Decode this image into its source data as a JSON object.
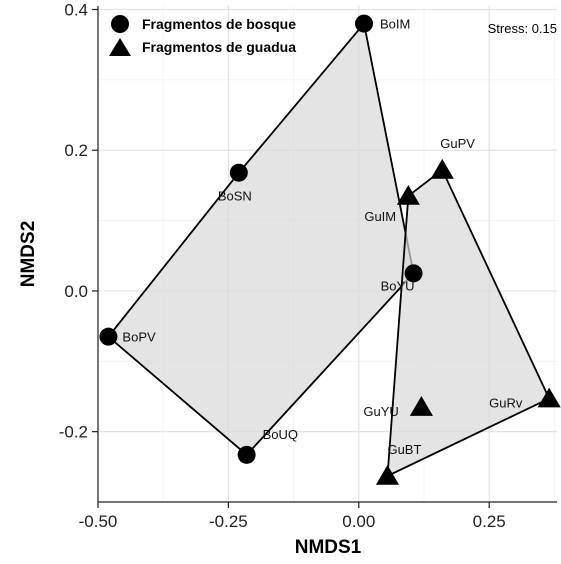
{
  "chart_data": {
    "type": "scatter",
    "xlabel": "NMDS1",
    "ylabel": "NMDS2",
    "xlim": [
      -0.5,
      0.38
    ],
    "ylim": [
      -0.3,
      0.405
    ],
    "x_ticks": [
      {
        "value": -0.5,
        "label": "-0.50"
      },
      {
        "value": -0.25,
        "label": "-0.25"
      },
      {
        "value": 0.0,
        "label": "0.00"
      },
      {
        "value": 0.25,
        "label": "0.25"
      }
    ],
    "y_ticks": [
      {
        "value": -0.2,
        "label": "-0.2"
      },
      {
        "value": 0.0,
        "label": "0.0"
      },
      {
        "value": 0.2,
        "label": "0.2"
      },
      {
        "value": 0.4,
        "label": "0.4"
      }
    ],
    "grid": true,
    "stress_label": "Stress: 0.15",
    "legend_position": "top-left",
    "series": [
      {
        "name": "Fragmentos de bosque",
        "marker": "circle",
        "points": [
          {
            "label": "BoIM",
            "x": 0.01,
            "y": 0.38
          },
          {
            "label": "BoSN",
            "x": -0.23,
            "y": 0.168
          },
          {
            "label": "BoPV",
            "x": -0.48,
            "y": -0.065
          },
          {
            "label": "BoUQ",
            "x": -0.215,
            "y": -0.233
          },
          {
            "label": "BoYU",
            "x": 0.105,
            "y": 0.025
          }
        ],
        "hull": [
          "BoIM",
          "BoSN",
          "BoPV",
          "BoUQ",
          "BoYU"
        ]
      },
      {
        "name": "Fragmentos de guadua",
        "marker": "triangle",
        "points": [
          {
            "label": "GuPV",
            "x": 0.16,
            "y": 0.172
          },
          {
            "label": "GuIM",
            "x": 0.095,
            "y": 0.135
          },
          {
            "label": "GuYU",
            "x": 0.12,
            "y": -0.165
          },
          {
            "label": "GuRv",
            "x": 0.365,
            "y": -0.153
          },
          {
            "label": "GuBT",
            "x": 0.055,
            "y": -0.263
          }
        ],
        "hull": [
          "GuPV",
          "GuRv",
          "GuBT",
          "GuIM"
        ]
      }
    ]
  }
}
